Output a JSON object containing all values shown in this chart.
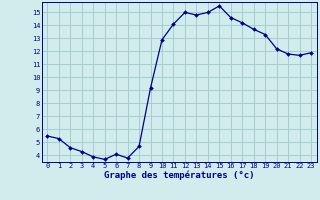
{
  "x": [
    0,
    1,
    2,
    3,
    4,
    5,
    6,
    7,
    8,
    9,
    10,
    11,
    12,
    13,
    14,
    15,
    16,
    17,
    18,
    19,
    20,
    21,
    22,
    23
  ],
  "y": [
    5.5,
    5.3,
    4.6,
    4.3,
    3.9,
    3.7,
    4.1,
    3.8,
    4.7,
    9.2,
    12.9,
    14.1,
    15.0,
    14.8,
    15.0,
    15.5,
    14.6,
    14.2,
    13.7,
    13.3,
    12.2,
    11.8,
    11.7,
    11.9
  ],
  "line_color": "#00008B",
  "marker": "D",
  "marker_size": 2.0,
  "bg_color": "#d0ecec",
  "grid_color": "#a0c8c8",
  "xlabel": "Graphe des températures (°c)",
  "xlabel_color": "#00008B",
  "xlim": [
    -0.5,
    23.5
  ],
  "ylim": [
    3.5,
    15.8
  ],
  "yticks": [
    4,
    5,
    6,
    7,
    8,
    9,
    10,
    11,
    12,
    13,
    14,
    15
  ],
  "xticks": [
    0,
    1,
    2,
    3,
    4,
    5,
    6,
    7,
    8,
    9,
    10,
    11,
    12,
    13,
    14,
    15,
    16,
    17,
    18,
    19,
    20,
    21,
    22,
    23
  ],
  "tick_color": "#00008B",
  "tick_fontsize": 5.0,
  "xlabel_fontsize": 6.5,
  "axis_color": "#00008B",
  "linewidth": 0.9
}
